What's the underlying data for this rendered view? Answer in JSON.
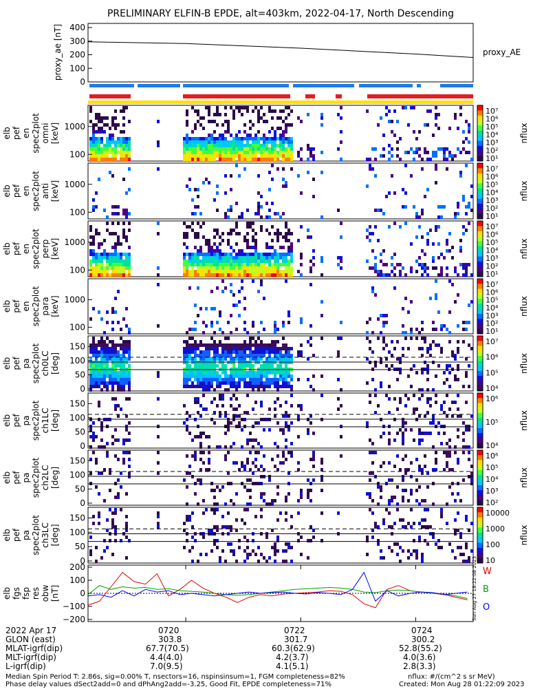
{
  "title": "PRELIMINARY ELFIN-B EPDE, alt=403km, 2022-04-17, North Descending",
  "colors": {
    "blue_bar": "#1e7ce8",
    "red_bar": "#e02020",
    "yellow_bar": "#ffe000",
    "trace_w": "#e00000",
    "trace_b": "#00a000",
    "trace_o": "#0000ff"
  },
  "proxy_panel": {
    "ylabel": "proxy_ae [nT]",
    "yticks": [
      "400",
      "300",
      "200",
      "100",
      "0"
    ],
    "legend": "proxy_AE"
  },
  "spec_panels": [
    {
      "ylabel": [
        "elb",
        "pef",
        "en",
        "spec2plot",
        "omni",
        "[keV]"
      ],
      "yticks": [
        "1000",
        "100"
      ]
    },
    {
      "ylabel": [
        "elb",
        "pef",
        "en",
        "spec2plot",
        "anti",
        "[keV]"
      ],
      "yticks": [
        "1000",
        "100"
      ]
    },
    {
      "ylabel": [
        "elb",
        "pef",
        "en",
        "spec2plot",
        "perp",
        "[keV]"
      ],
      "yticks": [
        "1000",
        "100"
      ]
    },
    {
      "ylabel": [
        "elb",
        "pef",
        "en",
        "spec2plot",
        "para",
        "[keV]"
      ],
      "yticks": [
        "1000",
        "100"
      ]
    },
    {
      "ylabel": [
        "elb",
        "pef",
        "pa",
        "spec2plot",
        "ch0LC",
        "[deg]"
      ],
      "yticks": [
        "150",
        "100",
        "50",
        "0"
      ]
    },
    {
      "ylabel": [
        "elb",
        "pef",
        "pa",
        "spec2plot",
        "ch1LC",
        "[deg]"
      ],
      "yticks": [
        "150",
        "100",
        "50",
        "0"
      ]
    },
    {
      "ylabel": [
        "elb",
        "pef",
        "pa",
        "spec2plot",
        "ch2LC",
        "[deg]"
      ],
      "yticks": [
        "150",
        "100",
        "50",
        "0"
      ]
    },
    {
      "ylabel": [
        "elb",
        "pef",
        "pa",
        "spec2plot",
        "ch3LC",
        "[deg]"
      ],
      "yticks": [
        "150",
        "100",
        "50",
        "0"
      ]
    }
  ],
  "colorbars": [
    {
      "label": "nflux",
      "ticks": [
        "10⁷",
        "10⁶",
        "10⁵",
        "10⁴",
        "10³",
        "10²",
        "10¹"
      ]
    },
    {
      "label": "nflux",
      "ticks": [
        "10⁷",
        "10⁶",
        "10⁵",
        "10⁴",
        "10³",
        "10²",
        "10¹"
      ]
    },
    {
      "label": "nflux",
      "ticks": [
        "10⁷",
        "10⁶",
        "10⁵",
        "10⁴",
        "10³",
        "10²",
        "10¹"
      ]
    },
    {
      "label": "nflux",
      "ticks": [
        "10⁷",
        "10⁶",
        "10⁵",
        "10⁴",
        "10³",
        "10²",
        "10¹"
      ]
    },
    {
      "label": "nflux",
      "ticks": [
        "10⁷",
        "10⁶",
        "10⁵",
        "10⁴"
      ]
    },
    {
      "label": "nflux",
      "ticks": [
        "10⁶",
        "10⁵",
        "10⁴"
      ]
    },
    {
      "label": "nflux",
      "ticks": [
        "10⁶",
        "10⁵",
        "10⁴",
        "10³",
        "10²"
      ]
    },
    {
      "label": "nflux",
      "ticks": [
        "10000",
        "1000",
        "100",
        "10"
      ]
    }
  ],
  "fgs_panel": {
    "ylabel": [
      "elb",
      "fgs",
      "fsp",
      "res",
      "obw",
      "[nT]"
    ],
    "yticks": [
      "200",
      "100",
      "0",
      "−100",
      "−200"
    ],
    "legend": [
      "W",
      "B",
      "O"
    ]
  },
  "side_stamp": "Sun Aug 27 18:22:08 2023",
  "bottom_table": {
    "date": "2022 Apr 17",
    "row_labels": [
      "GLON (east)",
      "MLAT-igrf(dip)",
      "MLT-igrf(dip)",
      "L-igrf(dip)"
    ],
    "times": [
      "0720",
      "0722",
      "0724"
    ],
    "columns": [
      [
        "303.8",
        "67.7(70.5)",
        "4.4(4.0)",
        "7.0(9.5)"
      ],
      [
        "301.7",
        "60.3(62.9)",
        "4.2(3.7)",
        "4.1(5.1)"
      ],
      [
        "300.2",
        "52.8(55.2)",
        "4.0(3.6)",
        "2.8(3.3)"
      ]
    ]
  },
  "footer": {
    "line1": "Median Spin Period T: 2.86s, sig=0.00% T, nsectors=16, nspinsinsum=1, FGM completeness=82%",
    "line2": "Phase delay values dSect2add=0 and dPhAng2add=-3.25, Good Fit, EPDE completeness=71%",
    "units": "nflux: #/(cm^2 s sr MeV)",
    "created": "Created: Mon Aug 28 01:22:09 2023"
  },
  "chart_data": {
    "type": "heatmap",
    "title": "PRELIMINARY ELFIN-B EPDE, alt=403km, 2022-04-17, North Descending",
    "x_tick_labels": [
      "0720",
      "0722",
      "0724"
    ],
    "x_minutes": [
      0,
      2,
      4
    ],
    "xlim_minutes": [
      -1.7,
      5.0
    ],
    "proxy_ae": {
      "ylim": [
        0,
        400
      ],
      "t": [
        -1.7,
        0,
        2,
        4,
        5
      ],
      "values": [
        295,
        282,
        248,
        205,
        180
      ]
    },
    "mlat_igrf": [
      67.7,
      60.3,
      52.8
    ],
    "glon_east": [
      303.8,
      301.7,
      300.2
    ],
    "mlt_igrf": [
      4.4,
      4.2,
      4.0
    ],
    "l_igrf": [
      7.0,
      4.1,
      2.8
    ],
    "fgs_ylim": [
      -200,
      200
    ],
    "fgs_series": [
      {
        "name": "W",
        "t": [
          -1.7,
          -1.5,
          -1.3,
          -1.1,
          -0.9,
          -0.7,
          -0.5,
          -0.3,
          -0.1,
          0.1,
          0.3,
          0.5,
          0.7,
          0.9,
          1.1,
          1.3,
          1.5,
          1.7,
          1.9,
          2.1,
          2.3,
          2.5,
          2.7,
          2.9,
          3.1,
          3.3,
          3.5,
          3.7,
          3.9,
          4.1,
          4.3,
          4.5,
          4.7,
          4.9
        ],
        "values": [
          -90,
          -60,
          50,
          160,
          90,
          70,
          150,
          -20,
          30,
          100,
          40,
          0,
          -30,
          -70,
          -30,
          -10,
          -20,
          -5,
          0,
          5,
          10,
          20,
          15,
          -10,
          -80,
          -110,
          30,
          60,
          20,
          10,
          0,
          -10,
          -30,
          -50
        ]
      },
      {
        "name": "B",
        "t": [
          -1.7,
          -1.5,
          -1.3,
          -1.1,
          -0.9,
          -0.7,
          -0.5,
          -0.3,
          -0.1,
          0.1,
          0.3,
          0.5,
          0.7,
          0.9,
          1.1,
          1.3,
          1.5,
          1.7,
          1.9,
          2.1,
          2.3,
          2.5,
          2.7,
          2.9,
          3.1,
          3.3,
          3.5,
          3.7,
          3.9,
          4.1,
          4.3,
          4.5,
          4.7,
          4.9
        ],
        "values": [
          -10,
          60,
          30,
          50,
          40,
          45,
          30,
          35,
          20,
          15,
          10,
          0,
          -10,
          -15,
          -10,
          0,
          10,
          20,
          30,
          35,
          40,
          45,
          40,
          30,
          10,
          5,
          20,
          25,
          20,
          10,
          0,
          -5,
          -20,
          -40
        ]
      },
      {
        "name": "O",
        "t": [
          -1.7,
          -1.5,
          -1.3,
          -1.1,
          -0.9,
          -0.7,
          -0.5,
          -0.3,
          -0.1,
          0.1,
          0.3,
          0.5,
          0.7,
          0.9,
          1.1,
          1.3,
          1.5,
          1.7,
          1.9,
          2.1,
          2.3,
          2.5,
          2.7,
          2.9,
          3.1,
          3.3,
          3.5,
          3.7,
          3.9,
          4.1,
          4.3,
          4.5,
          4.7,
          4.9
        ],
        "values": [
          -20,
          -10,
          -30,
          20,
          -20,
          30,
          10,
          20,
          -10,
          0,
          -10,
          -20,
          -10,
          0,
          10,
          0,
          5,
          10,
          0,
          -5,
          5,
          0,
          -10,
          30,
          160,
          -60,
          20,
          -20,
          0,
          10,
          5,
          -10,
          0,
          10
        ]
      }
    ]
  }
}
